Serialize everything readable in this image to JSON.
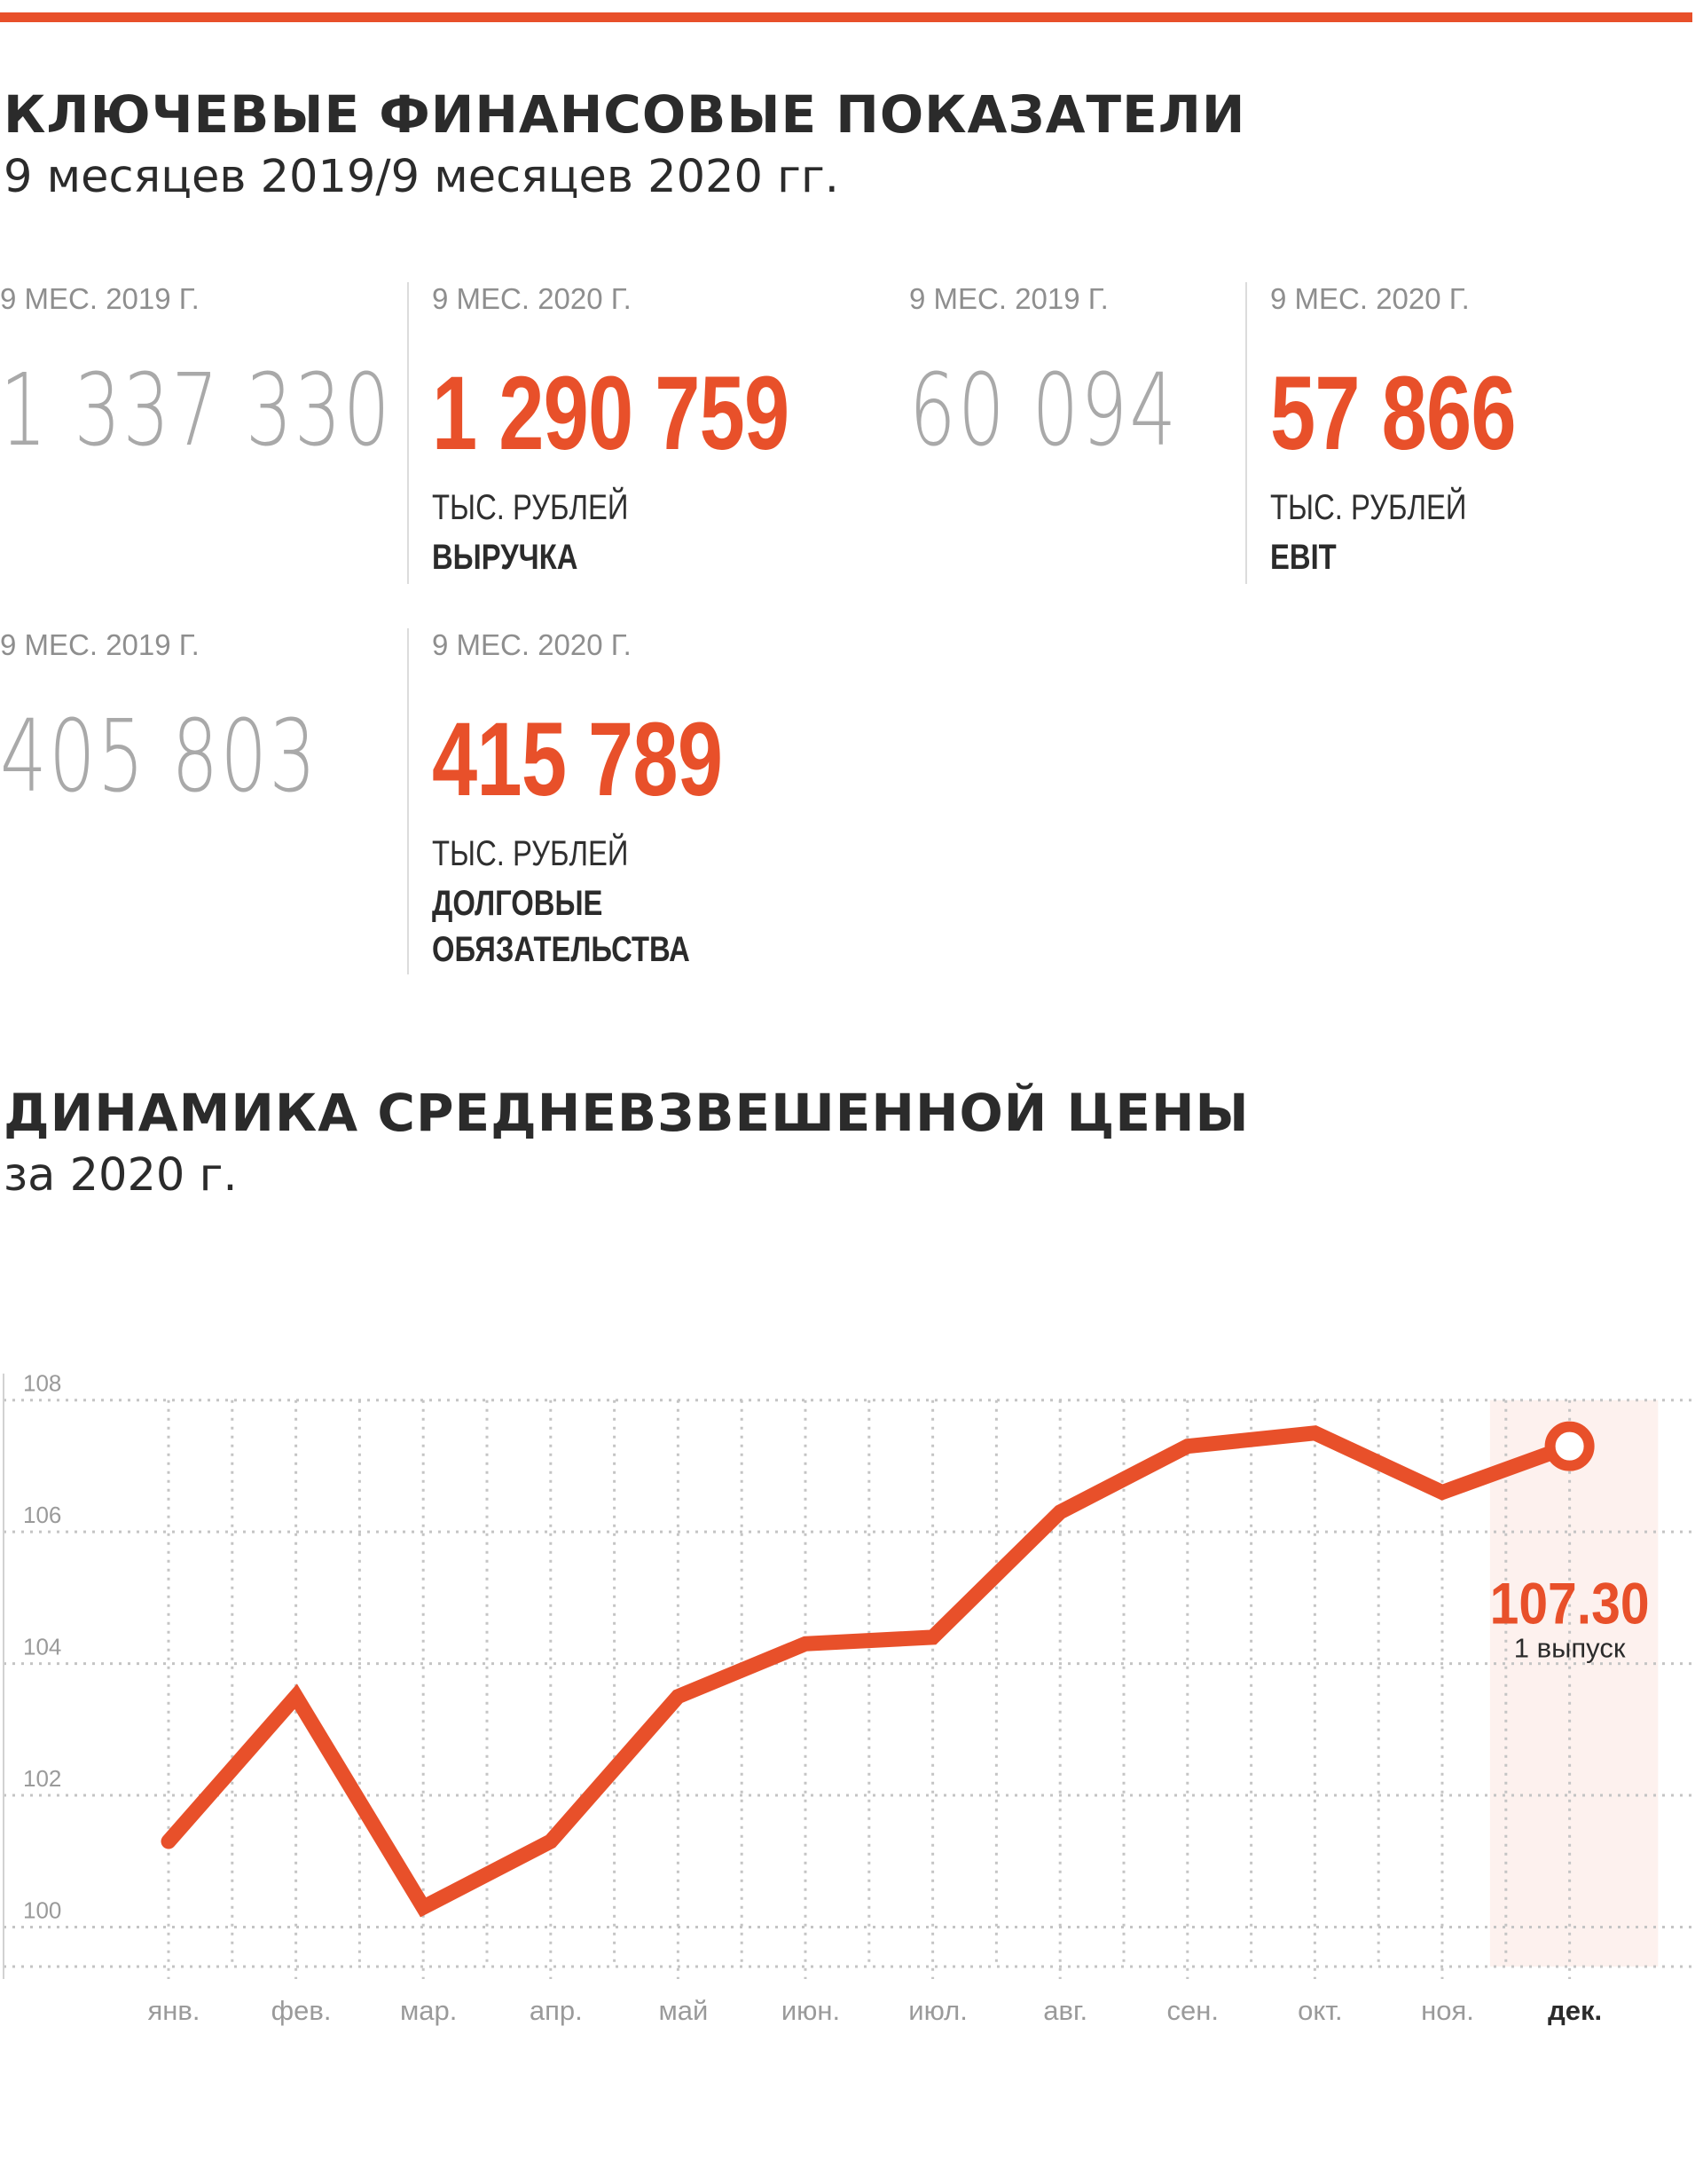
{
  "header": {
    "title": "КЛЮЧЕВЫЕ ФИНАНСОВЫЕ ПОКАЗАТЕЛИ",
    "subtitle": "9 месяцев 2019/9 месяцев 2020 гг."
  },
  "kpis": [
    {
      "period_old": "9 МЕС. 2019 Г.",
      "value_old": "1 337 330",
      "period_new": "9 МЕС. 2020 Г.",
      "value_new": "1 290 759",
      "unit": "ТЫС. РУБЛЕЙ",
      "metric_line1": "ВЫРУЧКА",
      "metric_line2": ""
    },
    {
      "period_old": "9 МЕС. 2019 Г.",
      "value_old": "60 094",
      "period_new": "9 МЕС. 2020 Г.",
      "value_new": "57 866",
      "unit": "ТЫС. РУБЛЕЙ",
      "metric_line1": "EBIT",
      "metric_line2": ""
    },
    {
      "period_old": "9 МЕС. 2019 Г.",
      "value_old": "405 803",
      "period_new": "9 МЕС. 2020 Г.",
      "value_new": "415 789",
      "unit": "ТЫС. РУБЛЕЙ",
      "metric_line1": "ДОЛГОВЫЕ",
      "metric_line2": "ОБЯЗАТЕЛЬСТВА"
    }
  ],
  "chart_section": {
    "title": "ДИНАМИКА СРЕДНЕВЗВЕШЕННОЙ ЦЕНЫ",
    "subtitle": "за 2020 г."
  },
  "colors": {
    "accent": "#e8502a",
    "highlight_band": "#fdf1ee",
    "grid": "#c4c4c4",
    "muted_text": "#9a9a9a"
  },
  "chart_data": {
    "type": "line",
    "categories": [
      "янв.",
      "фев.",
      "мар.",
      "апр.",
      "май",
      "июн.",
      "июл.",
      "авг.",
      "сен.",
      "окт.",
      "ноя.",
      "дек."
    ],
    "series": [
      {
        "values": [
          101.3,
          103.5,
          100.3,
          101.3,
          103.5,
          104.3,
          104.4,
          106.3,
          107.3,
          107.5,
          106.6,
          107.3
        ]
      }
    ],
    "yticks": [
      100,
      102,
      104,
      106,
      108
    ],
    "ylim": [
      99.4,
      108.4
    ],
    "grid": true,
    "highlight_category": "дек.",
    "annotation": {
      "value": "107.30",
      "label": "1 выпуск"
    }
  }
}
